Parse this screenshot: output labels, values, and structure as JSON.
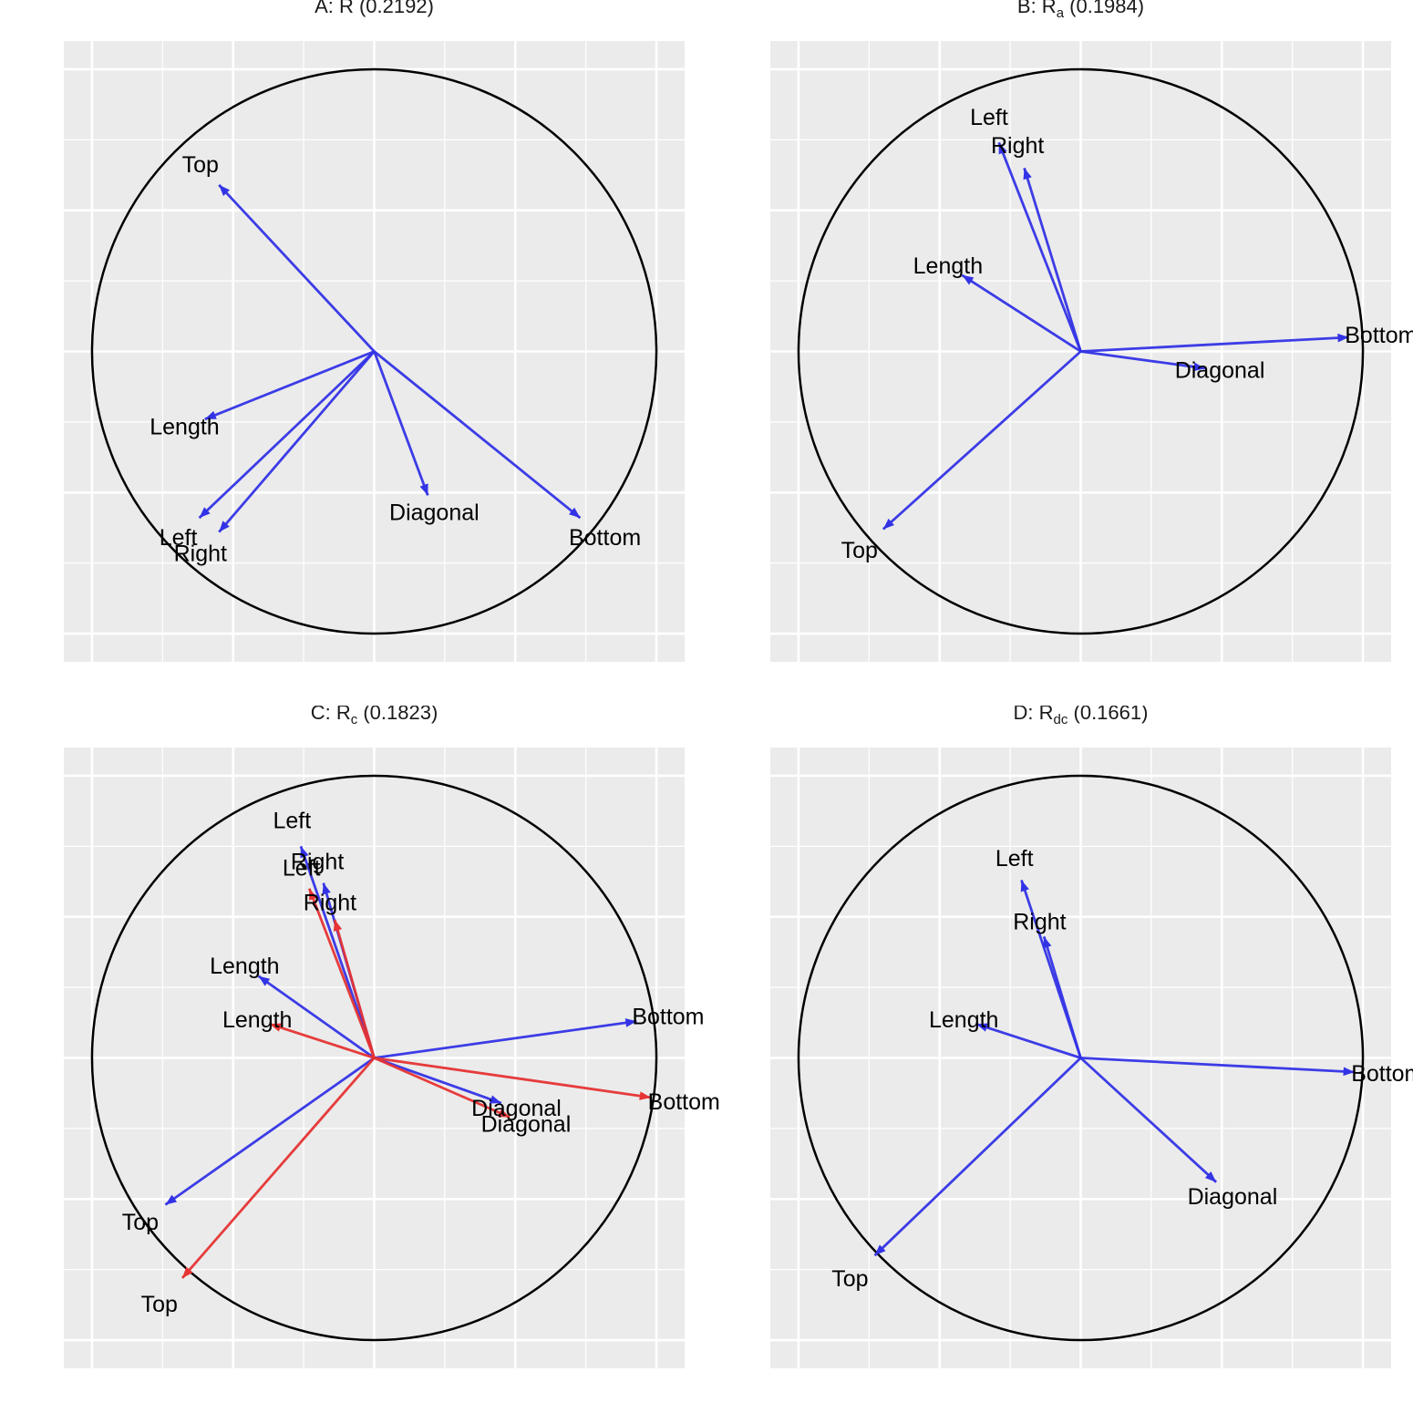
{
  "chart_data": [
    {
      "type": "correlation-circle",
      "title": {
        "prefix": "A: ",
        "base": "R",
        "sub": "",
        "suffix": " (0.2192)"
      },
      "xlim": [
        -1.1,
        1.1
      ],
      "ylim": [
        -1.1,
        1.1
      ],
      "grid": true,
      "circle": true,
      "series": [
        {
          "color": "#3333e6",
          "vectors": [
            {
              "label": "Top",
              "x": -0.55,
              "y": 0.59
            },
            {
              "label": "Length",
              "x": -0.6,
              "y": -0.24
            },
            {
              "label": "Left",
              "x": -0.62,
              "y": -0.59
            },
            {
              "label": "Right",
              "x": -0.55,
              "y": -0.64
            },
            {
              "label": "Diagonal",
              "x": 0.19,
              "y": -0.51
            },
            {
              "label": "Bottom",
              "x": 0.73,
              "y": -0.59
            }
          ]
        }
      ]
    },
    {
      "type": "correlation-circle",
      "title": {
        "prefix": "B: ",
        "base": "R",
        "sub": "a",
        "suffix": " (0.1984)"
      },
      "xlim": [
        -1.1,
        1.1
      ],
      "ylim": [
        -1.1,
        1.1
      ],
      "grid": true,
      "circle": true,
      "series": [
        {
          "color": "#3333e6",
          "vectors": [
            {
              "label": "Left",
              "x": -0.29,
              "y": 0.74
            },
            {
              "label": "Right",
              "x": -0.2,
              "y": 0.65
            },
            {
              "label": "Length",
              "x": -0.42,
              "y": 0.27
            },
            {
              "label": "Bottom",
              "x": 0.95,
              "y": 0.05
            },
            {
              "label": "Diagonal",
              "x": 0.44,
              "y": -0.06
            },
            {
              "label": "Top",
              "x": -0.7,
              "y": -0.63
            }
          ]
        }
      ]
    },
    {
      "type": "correlation-circle",
      "title": {
        "prefix": "C: ",
        "base": "R",
        "sub": "c",
        "suffix": " (0.1823)"
      },
      "xlim": [
        -1.1,
        1.1
      ],
      "ylim": [
        -1.1,
        1.1
      ],
      "grid": true,
      "circle": true,
      "series": [
        {
          "color": "#3333e6",
          "vectors": [
            {
              "label": "Left",
              "x": -0.26,
              "y": 0.75
            },
            {
              "label": "Right",
              "x": -0.18,
              "y": 0.62
            },
            {
              "label": "Length",
              "x": -0.41,
              "y": 0.29
            },
            {
              "label": "Bottom",
              "x": 0.93,
              "y": 0.13
            },
            {
              "label": "Diagonal",
              "x": 0.45,
              "y": -0.16
            },
            {
              "label": "Top",
              "x": -0.74,
              "y": -0.52
            }
          ]
        },
        {
          "color": "#e63333",
          "vectors": [
            {
              "label": "Left",
              "x": -0.23,
              "y": 0.6
            },
            {
              "label": "Right",
              "x": -0.14,
              "y": 0.49
            },
            {
              "label": "Length",
              "x": -0.37,
              "y": 0.12
            },
            {
              "label": "Bottom",
              "x": 0.98,
              "y": -0.14
            },
            {
              "label": "Diagonal",
              "x": 0.48,
              "y": -0.21
            },
            {
              "label": "Top",
              "x": -0.68,
              "y": -0.78
            }
          ]
        }
      ]
    },
    {
      "type": "correlation-circle",
      "title": {
        "prefix": "D: ",
        "base": "R",
        "sub": "dc",
        "suffix": " (0.1661)"
      },
      "xlim": [
        -1.1,
        1.1
      ],
      "ylim": [
        -1.1,
        1.1
      ],
      "grid": true,
      "circle": true,
      "series": [
        {
          "color": "#3333e6",
          "vectors": [
            {
              "label": "Left",
              "x": -0.21,
              "y": 0.63
            },
            {
              "label": "Right",
              "x": -0.13,
              "y": 0.43
            },
            {
              "label": "Length",
              "x": -0.37,
              "y": 0.12
            },
            {
              "label": "Bottom",
              "x": 0.97,
              "y": -0.05
            },
            {
              "label": "Diagonal",
              "x": 0.48,
              "y": -0.44
            },
            {
              "label": "Top",
              "x": -0.73,
              "y": -0.7
            }
          ]
        }
      ]
    }
  ]
}
